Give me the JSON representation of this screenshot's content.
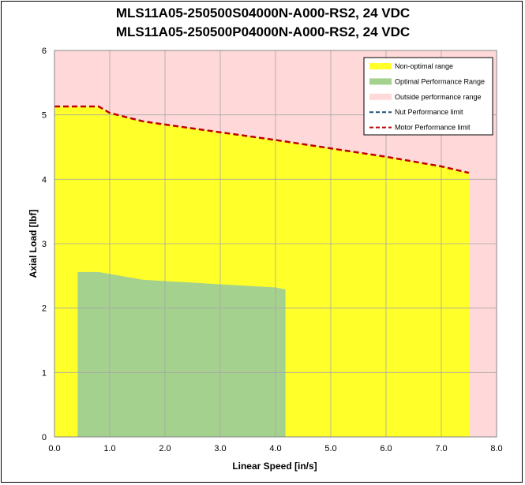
{
  "chart_data": {
    "type": "area",
    "title_lines": [
      "MLS11A05-250500S04000N-A000-RS2, 24 VDC",
      "MLS11A05-250500P04000N-A000-RS2, 24 VDC"
    ],
    "xlabel": "Linear Speed [in/s]",
    "ylabel": "Axial Load [lbf]",
    "xlim": [
      0,
      8
    ],
    "ylim": [
      0,
      6
    ],
    "x_ticks": [
      "0.0",
      "1.0",
      "2.0",
      "3.0",
      "4.0",
      "5.0",
      "6.0",
      "7.0",
      "8.0"
    ],
    "y_ticks": [
      "0",
      "1",
      "2",
      "3",
      "4",
      "5",
      "6"
    ],
    "grid": true,
    "legend_position": "top-right",
    "colors": {
      "outside": "#ffd9d9",
      "non_optimal": "#ffff2a",
      "optimal": "#a5d18e",
      "motor_limit": "#c00000",
      "nut_limit": "#1f4e79",
      "grid": "#a6a6a6"
    },
    "series": [
      {
        "name": "Non-optimal range",
        "kind": "area",
        "x": [
          0.0,
          0.8,
          1.0,
          1.6,
          2.0,
          3.0,
          4.0,
          5.0,
          6.0,
          7.0,
          7.5
        ],
        "y": [
          5.13,
          5.13,
          5.03,
          4.9,
          4.85,
          4.73,
          4.61,
          4.48,
          4.35,
          4.2,
          4.1
        ]
      },
      {
        "name": "Optimal Performance Range",
        "kind": "area",
        "x": [
          0.42,
          0.8,
          1.0,
          1.6,
          2.0,
          3.0,
          4.0,
          4.18
        ],
        "y": [
          2.56,
          2.56,
          2.53,
          2.44,
          2.42,
          2.37,
          2.32,
          2.29
        ]
      },
      {
        "name": "Outside performance range",
        "kind": "background"
      },
      {
        "name": "Nut Performance limit",
        "kind": "dashed-line",
        "x": [],
        "y": []
      },
      {
        "name": "Motor Performance limit",
        "kind": "dashed-line",
        "x": [
          0.0,
          0.8,
          1.0,
          1.6,
          2.0,
          3.0,
          4.0,
          5.0,
          6.0,
          7.0,
          7.5
        ],
        "y": [
          5.13,
          5.13,
          5.03,
          4.9,
          4.85,
          4.73,
          4.61,
          4.48,
          4.35,
          4.2,
          4.1
        ]
      }
    ]
  }
}
